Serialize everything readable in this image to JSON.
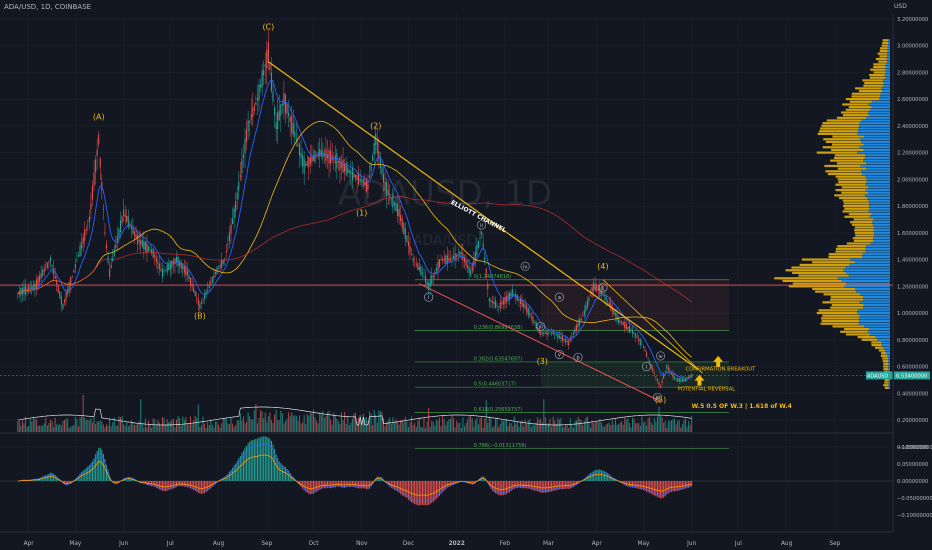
{
  "header": {
    "symbol": "ADA/USD, 1D, COINBASE",
    "currency": "USD"
  },
  "watermark": {
    "text": "ADAUSD, 1D",
    "sub": "ADA/USD"
  },
  "colors": {
    "background": "#131722",
    "grid": "#1e222d",
    "up": "#26a69a",
    "down": "#ef5350",
    "ema_fast": "#2962ff",
    "ma_slow": "#f0b90b",
    "ma_long": "#d32f2f",
    "white_line": "#e0e0e0",
    "channel": "#f0b90b",
    "channel_lower": "#ef5350",
    "profile_value": "#2196f3",
    "profile_outside": "#f0b90b",
    "fib": "#4caf50",
    "wave_label": "#f0b90b",
    "price_tag": "#26a69a"
  },
  "icons": [
    "up-arrow-icon"
  ],
  "chart_data": [
    {
      "type": "candlestick",
      "title": "ADA/USD, 1D, COINBASE",
      "ylim": [
        0.2,
        3.2
      ],
      "y_ticks": [
        "3.20000000",
        "3.00000000",
        "2.80000000",
        "2.60000000",
        "2.40000000",
        "2.20000000",
        "2.00000000",
        "1.80000000",
        "1.60000000",
        "1.40000000",
        "1.20000000",
        "1.00000000",
        "0.80000000",
        "0.60000000",
        "0.40000000",
        "0.20000000",
        "−0.00000000"
      ],
      "x_ticks": [
        "Apr",
        "May",
        "Jun",
        "Jul",
        "Aug",
        "Sep",
        "Oct",
        "Nov",
        "Dec",
        "2022",
        "Feb",
        "Mar",
        "Apr",
        "May",
        "Jun",
        "Jul",
        "Aug",
        "Sep"
      ],
      "last_price": {
        "ticker": "ADAUSD",
        "value": "0.53400000"
      },
      "path_points": [
        {
          "x": "2021-03-25",
          "y": 1.15
        },
        {
          "x": "2021-04-05",
          "y": 1.2
        },
        {
          "x": "2021-04-15",
          "y": 1.4
        },
        {
          "x": "2021-04-23",
          "y": 1.05
        },
        {
          "x": "2021-05-01",
          "y": 1.35
        },
        {
          "x": "2021-05-10",
          "y": 1.7
        },
        {
          "x": "2021-05-16",
          "y": 2.3
        },
        {
          "x": "2021-05-20",
          "y": 1.6
        },
        {
          "x": "2021-05-23",
          "y": 1.3
        },
        {
          "x": "2021-06-01",
          "y": 1.75
        },
        {
          "x": "2021-06-10",
          "y": 1.55
        },
        {
          "x": "2021-06-20",
          "y": 1.45
        },
        {
          "x": "2021-06-26",
          "y": 1.3
        },
        {
          "x": "2021-07-05",
          "y": 1.4
        },
        {
          "x": "2021-07-12",
          "y": 1.3
        },
        {
          "x": "2021-07-20",
          "y": 1.05
        },
        {
          "x": "2021-07-30",
          "y": 1.3
        },
        {
          "x": "2021-08-05",
          "y": 1.4
        },
        {
          "x": "2021-08-12",
          "y": 1.8
        },
        {
          "x": "2021-08-20",
          "y": 2.4
        },
        {
          "x": "2021-08-26",
          "y": 2.6
        },
        {
          "x": "2021-09-02",
          "y": 2.95
        },
        {
          "x": "2021-09-07",
          "y": 2.4
        },
        {
          "x": "2021-09-12",
          "y": 2.6
        },
        {
          "x": "2021-09-20",
          "y": 2.3
        },
        {
          "x": "2021-09-25",
          "y": 2.1
        },
        {
          "x": "2021-10-05",
          "y": 2.2
        },
        {
          "x": "2021-10-15",
          "y": 2.15
        },
        {
          "x": "2021-10-25",
          "y": 2.05
        },
        {
          "x": "2021-11-05",
          "y": 1.95
        },
        {
          "x": "2021-11-10",
          "y": 2.3
        },
        {
          "x": "2021-11-16",
          "y": 1.95
        },
        {
          "x": "2021-11-25",
          "y": 1.75
        },
        {
          "x": "2021-12-04",
          "y": 1.4
        },
        {
          "x": "2021-12-10",
          "y": 1.3
        },
        {
          "x": "2021-12-14",
          "y": 1.2
        },
        {
          "x": "2021-12-22",
          "y": 1.4
        },
        {
          "x": "2021-12-28",
          "y": 1.4
        },
        {
          "x": "2022-01-04",
          "y": 1.45
        },
        {
          "x": "2022-01-10",
          "y": 1.3
        },
        {
          "x": "2022-01-17",
          "y": 1.6
        },
        {
          "x": "2022-01-22",
          "y": 1.1
        },
        {
          "x": "2022-01-28",
          "y": 1.05
        },
        {
          "x": "2022-02-06",
          "y": 1.15
        },
        {
          "x": "2022-02-14",
          "y": 1.05
        },
        {
          "x": "2022-02-24",
          "y": 0.85
        },
        {
          "x": "2022-03-04",
          "y": 0.85
        },
        {
          "x": "2022-03-14",
          "y": 0.78
        },
        {
          "x": "2022-03-24",
          "y": 1.0
        },
        {
          "x": "2022-03-30",
          "y": 1.2
        },
        {
          "x": "2022-04-05",
          "y": 1.15
        },
        {
          "x": "2022-04-15",
          "y": 0.95
        },
        {
          "x": "2022-04-25",
          "y": 0.85
        },
        {
          "x": "2022-05-01",
          "y": 0.75
        },
        {
          "x": "2022-05-06",
          "y": 0.6
        },
        {
          "x": "2022-05-12",
          "y": 0.45
        },
        {
          "x": "2022-05-16",
          "y": 0.6
        },
        {
          "x": "2022-05-22",
          "y": 0.5
        },
        {
          "x": "2022-05-28",
          "y": 0.5
        },
        {
          "x": "2022-06-01",
          "y": 0.534
        }
      ]
    },
    {
      "type": "bar",
      "title": "Volume",
      "ylim": [
        0,
        1
      ]
    },
    {
      "type": "line",
      "title": "MACD",
      "ylim": [
        -0.12,
        0.12
      ],
      "y_ticks": [
        "0.10000000",
        "0.05000000",
        "0.00000000",
        "−0.05000000",
        "−0.10000000"
      ]
    }
  ],
  "annotations": {
    "waves_primary": [
      {
        "text": "(A)",
        "x": "2021-05-16",
        "y": 2.45
      },
      {
        "text": "(B)",
        "x": "2021-07-20",
        "y": 0.96
      },
      {
        "text": "(C)",
        "x": "2021-09-02",
        "y": 3.12
      },
      {
        "text": "(1)",
        "x": "2021-11-01",
        "y": 1.73
      },
      {
        "text": "(2)",
        "x": "2021-11-10",
        "y": 2.38
      },
      {
        "text": "(3)",
        "x": "2022-02-25",
        "y": 0.62
      },
      {
        "text": "(4)",
        "x": "2022-04-05",
        "y": 1.33
      },
      {
        "text": "(5)",
        "x": "2022-05-12",
        "y": 0.33
      }
    ],
    "waves_circled": [
      {
        "text": "i",
        "x": "2021-12-14",
        "y": 1.12
      },
      {
        "text": "ii",
        "x": "2022-01-17",
        "y": 1.66
      },
      {
        "text": "iii",
        "x": "2022-02-24",
        "y": 0.9
      },
      {
        "text": "iv",
        "x": "2022-02-14",
        "y": 1.35
      },
      {
        "text": "v",
        "x": "2022-03-08",
        "y": 0.69
      },
      {
        "text": "a",
        "x": "2022-03-08",
        "y": 1.12
      },
      {
        "text": "b",
        "x": "2022-03-20",
        "y": 0.67
      },
      {
        "text": "c",
        "x": "2022-04-05",
        "y": 1.19
      },
      {
        "text": "i",
        "x": "2022-05-03",
        "y": 0.6
      },
      {
        "text": "iv",
        "x": "2022-05-12",
        "y": 0.68
      },
      {
        "text": "iii",
        "x": "2022-05-10",
        "y": 0.37
      }
    ],
    "fib_levels": [
      {
        "text": "0(1.24874818)",
        "y": 1.25
      },
      {
        "text": "0.236(0.86984638)",
        "y": 0.87
      },
      {
        "text": "0.382(0.63547697)",
        "y": 0.635
      },
      {
        "text": "0.5(0.44603717)",
        "y": 0.446
      },
      {
        "text": "0.618(0.25659737)",
        "y": 0.257
      },
      {
        "text": "0.786(−0.01311759)",
        "y": -0.013
      }
    ],
    "channel_label": "ELLIOTT CHANNEL",
    "confirmation_label": "CONFIRMATION BREAKOUT",
    "reversal_label": "POTENTIAL REVERSAL",
    "target_label": "W.5 0.5 OF W.3 | 1.618 of W.4"
  }
}
